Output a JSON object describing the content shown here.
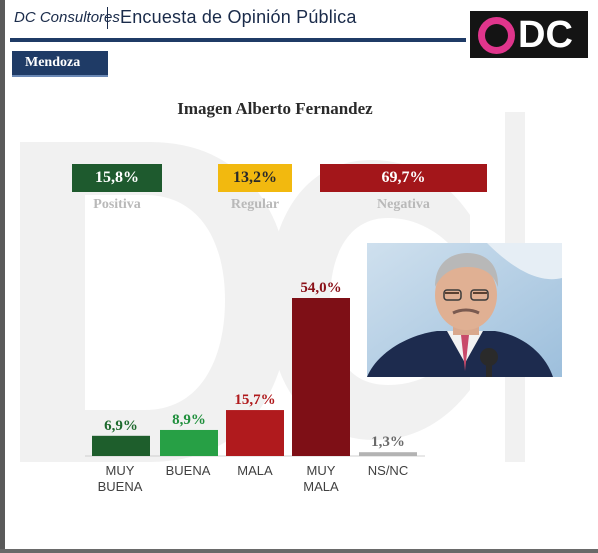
{
  "header": {
    "brand": "DC Consultores",
    "title": "Encuesta de Opinión Pública",
    "logo_text": "DC"
  },
  "region": "Mendoza",
  "summary": [
    {
      "value": "15,8%",
      "label": "Positiva",
      "color": "#1e5a2e"
    },
    {
      "value": "13,2%",
      "label": "Regular",
      "color": "#f2b90f"
    },
    {
      "value": "69,7%",
      "label": "Negativa",
      "color": "#a3161a"
    }
  ],
  "photo": {
    "icon": "person-photo"
  },
  "chart_data": {
    "type": "bar",
    "title": "Imagen Alberto Fernandez",
    "categories": [
      "MUY BUENA",
      "BUENA",
      "MALA",
      "MUY MALA",
      "NS/NC"
    ],
    "category_lines": [
      [
        "MUY",
        "BUENA"
      ],
      [
        "BUENA"
      ],
      [
        "MALA"
      ],
      [
        "MUY",
        "MALA"
      ],
      [
        "NS/NC"
      ]
    ],
    "values": [
      6.9,
      8.9,
      15.7,
      54.0,
      1.3
    ],
    "value_labels": [
      "6,9%",
      "8,9%",
      "15,7%",
      "54,0%",
      "1,3%"
    ],
    "colors": [
      "#1e5e2c",
      "#27a045",
      "#b01a1d",
      "#7e0f16",
      "#b3b3b3"
    ],
    "label_colors": [
      "#1e6a2e",
      "#1f8f3c",
      "#b01a1d",
      "#8a1018",
      "#6a6a6a"
    ],
    "ylim": [
      0,
      54.0
    ],
    "grid": false,
    "legend": "none"
  }
}
